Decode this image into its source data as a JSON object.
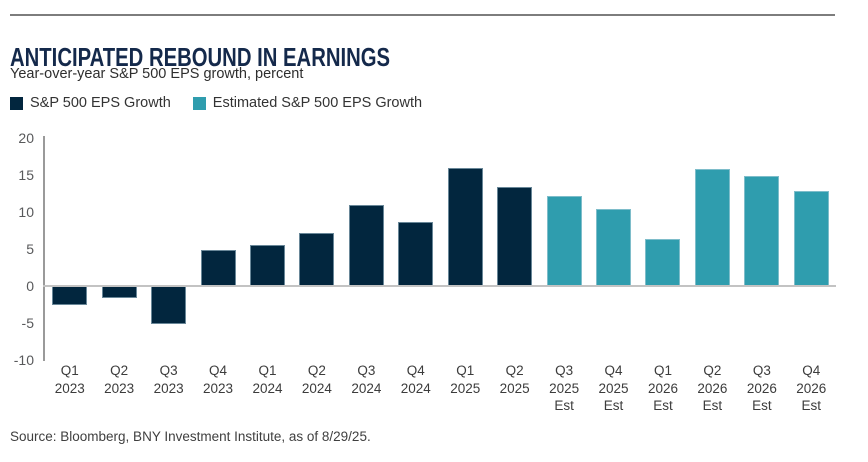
{
  "header": {
    "title": "ANTICIPATED REBOUND IN EARNINGS",
    "subtitle": "Year-over-year S&P 500 EPS growth, percent"
  },
  "legend": [
    {
      "label": "S&P 500 EPS Growth",
      "color": "#02263E"
    },
    {
      "label": "Estimated S&P 500 EPS Growth",
      "color": "#2F9DAE"
    }
  ],
  "chart_data": {
    "type": "bar",
    "title": "ANTICIPATED REBOUND IN EARNINGS",
    "subtitle": "Year-over-year S&P 500 EPS growth, percent",
    "categories": [
      [
        "Q1",
        "2023"
      ],
      [
        "Q2",
        "2023"
      ],
      [
        "Q3",
        "2023"
      ],
      [
        "Q4",
        "2023"
      ],
      [
        "Q1",
        "2024"
      ],
      [
        "Q2",
        "2024"
      ],
      [
        "Q3",
        "2024"
      ],
      [
        "Q4",
        "2024"
      ],
      [
        "Q1",
        "2025"
      ],
      [
        "Q2",
        "2025"
      ],
      [
        "Q3",
        "2025",
        "Est"
      ],
      [
        "Q4",
        "2025",
        "Est"
      ],
      [
        "Q1",
        "2026",
        "Est"
      ],
      [
        "Q2",
        "2026",
        "Est"
      ],
      [
        "Q3",
        "2026",
        "Est"
      ],
      [
        "Q4",
        "2026",
        "Est"
      ]
    ],
    "series": [
      {
        "name": "S&P 500 EPS Growth",
        "color": "#02263E",
        "values": [
          -2.6,
          -1.6,
          -5.1,
          4.8,
          5.5,
          7.1,
          10.9,
          8.7,
          15.9,
          13.4,
          null,
          null,
          null,
          null,
          null,
          null
        ]
      },
      {
        "name": "Estimated S&P 500 EPS Growth",
        "color": "#2F9DAE",
        "values": [
          null,
          null,
          null,
          null,
          null,
          null,
          null,
          null,
          null,
          null,
          12.1,
          10.4,
          6.3,
          15.8,
          14.9,
          12.9
        ]
      }
    ],
    "ylabel": "percent",
    "xlabel": "",
    "ylim": [
      -10,
      20
    ],
    "yticks": [
      20,
      15,
      10,
      5,
      0,
      -5,
      -10
    ],
    "grid": false,
    "legend_position": "top"
  },
  "source": "Source: Bloomberg, BNY Investment Institute, as of 8/29/25."
}
